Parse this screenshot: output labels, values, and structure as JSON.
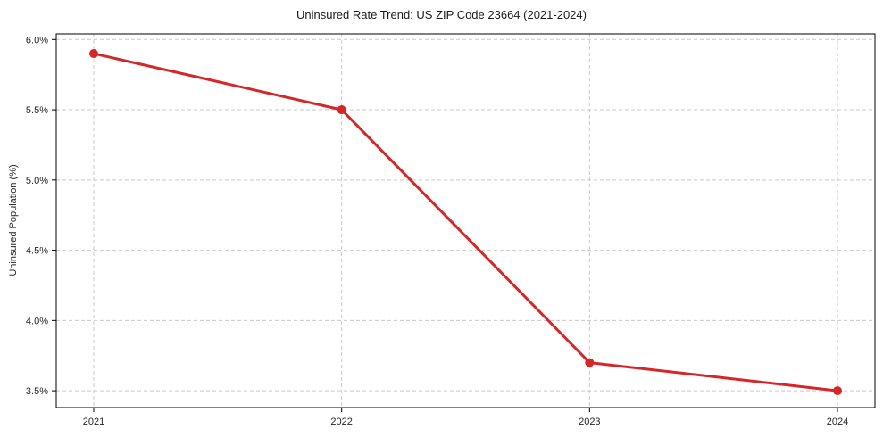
{
  "chart_data": {
    "type": "line",
    "title": "Uninsured Rate Trend: US ZIP Code 23664 (2021-2024)",
    "xlabel": "",
    "ylabel": "Uninsured Population (%)",
    "categories": [
      "2021",
      "2022",
      "2023",
      "2024"
    ],
    "values": [
      5.9,
      5.5,
      3.7,
      3.5
    ],
    "ylim": [
      3.38,
      6.04
    ],
    "yticks": [
      3.5,
      4.0,
      4.5,
      5.0,
      5.5,
      6.0
    ],
    "ytick_labels": [
      "3.5%",
      "4.0%",
      "4.5%",
      "5.0%",
      "5.5%",
      "6.0%"
    ],
    "xtick_labels": [
      "2021",
      "2022",
      "2023",
      "2024"
    ],
    "grid": true,
    "grid_style": "dashed",
    "legend_position": "none",
    "line_color": "#d62728",
    "marker": "circle",
    "grid_color": "#c9c9c9",
    "axis_color": "#000000",
    "tick_label_color": "#262626",
    "background_color": "#ffffff"
  }
}
